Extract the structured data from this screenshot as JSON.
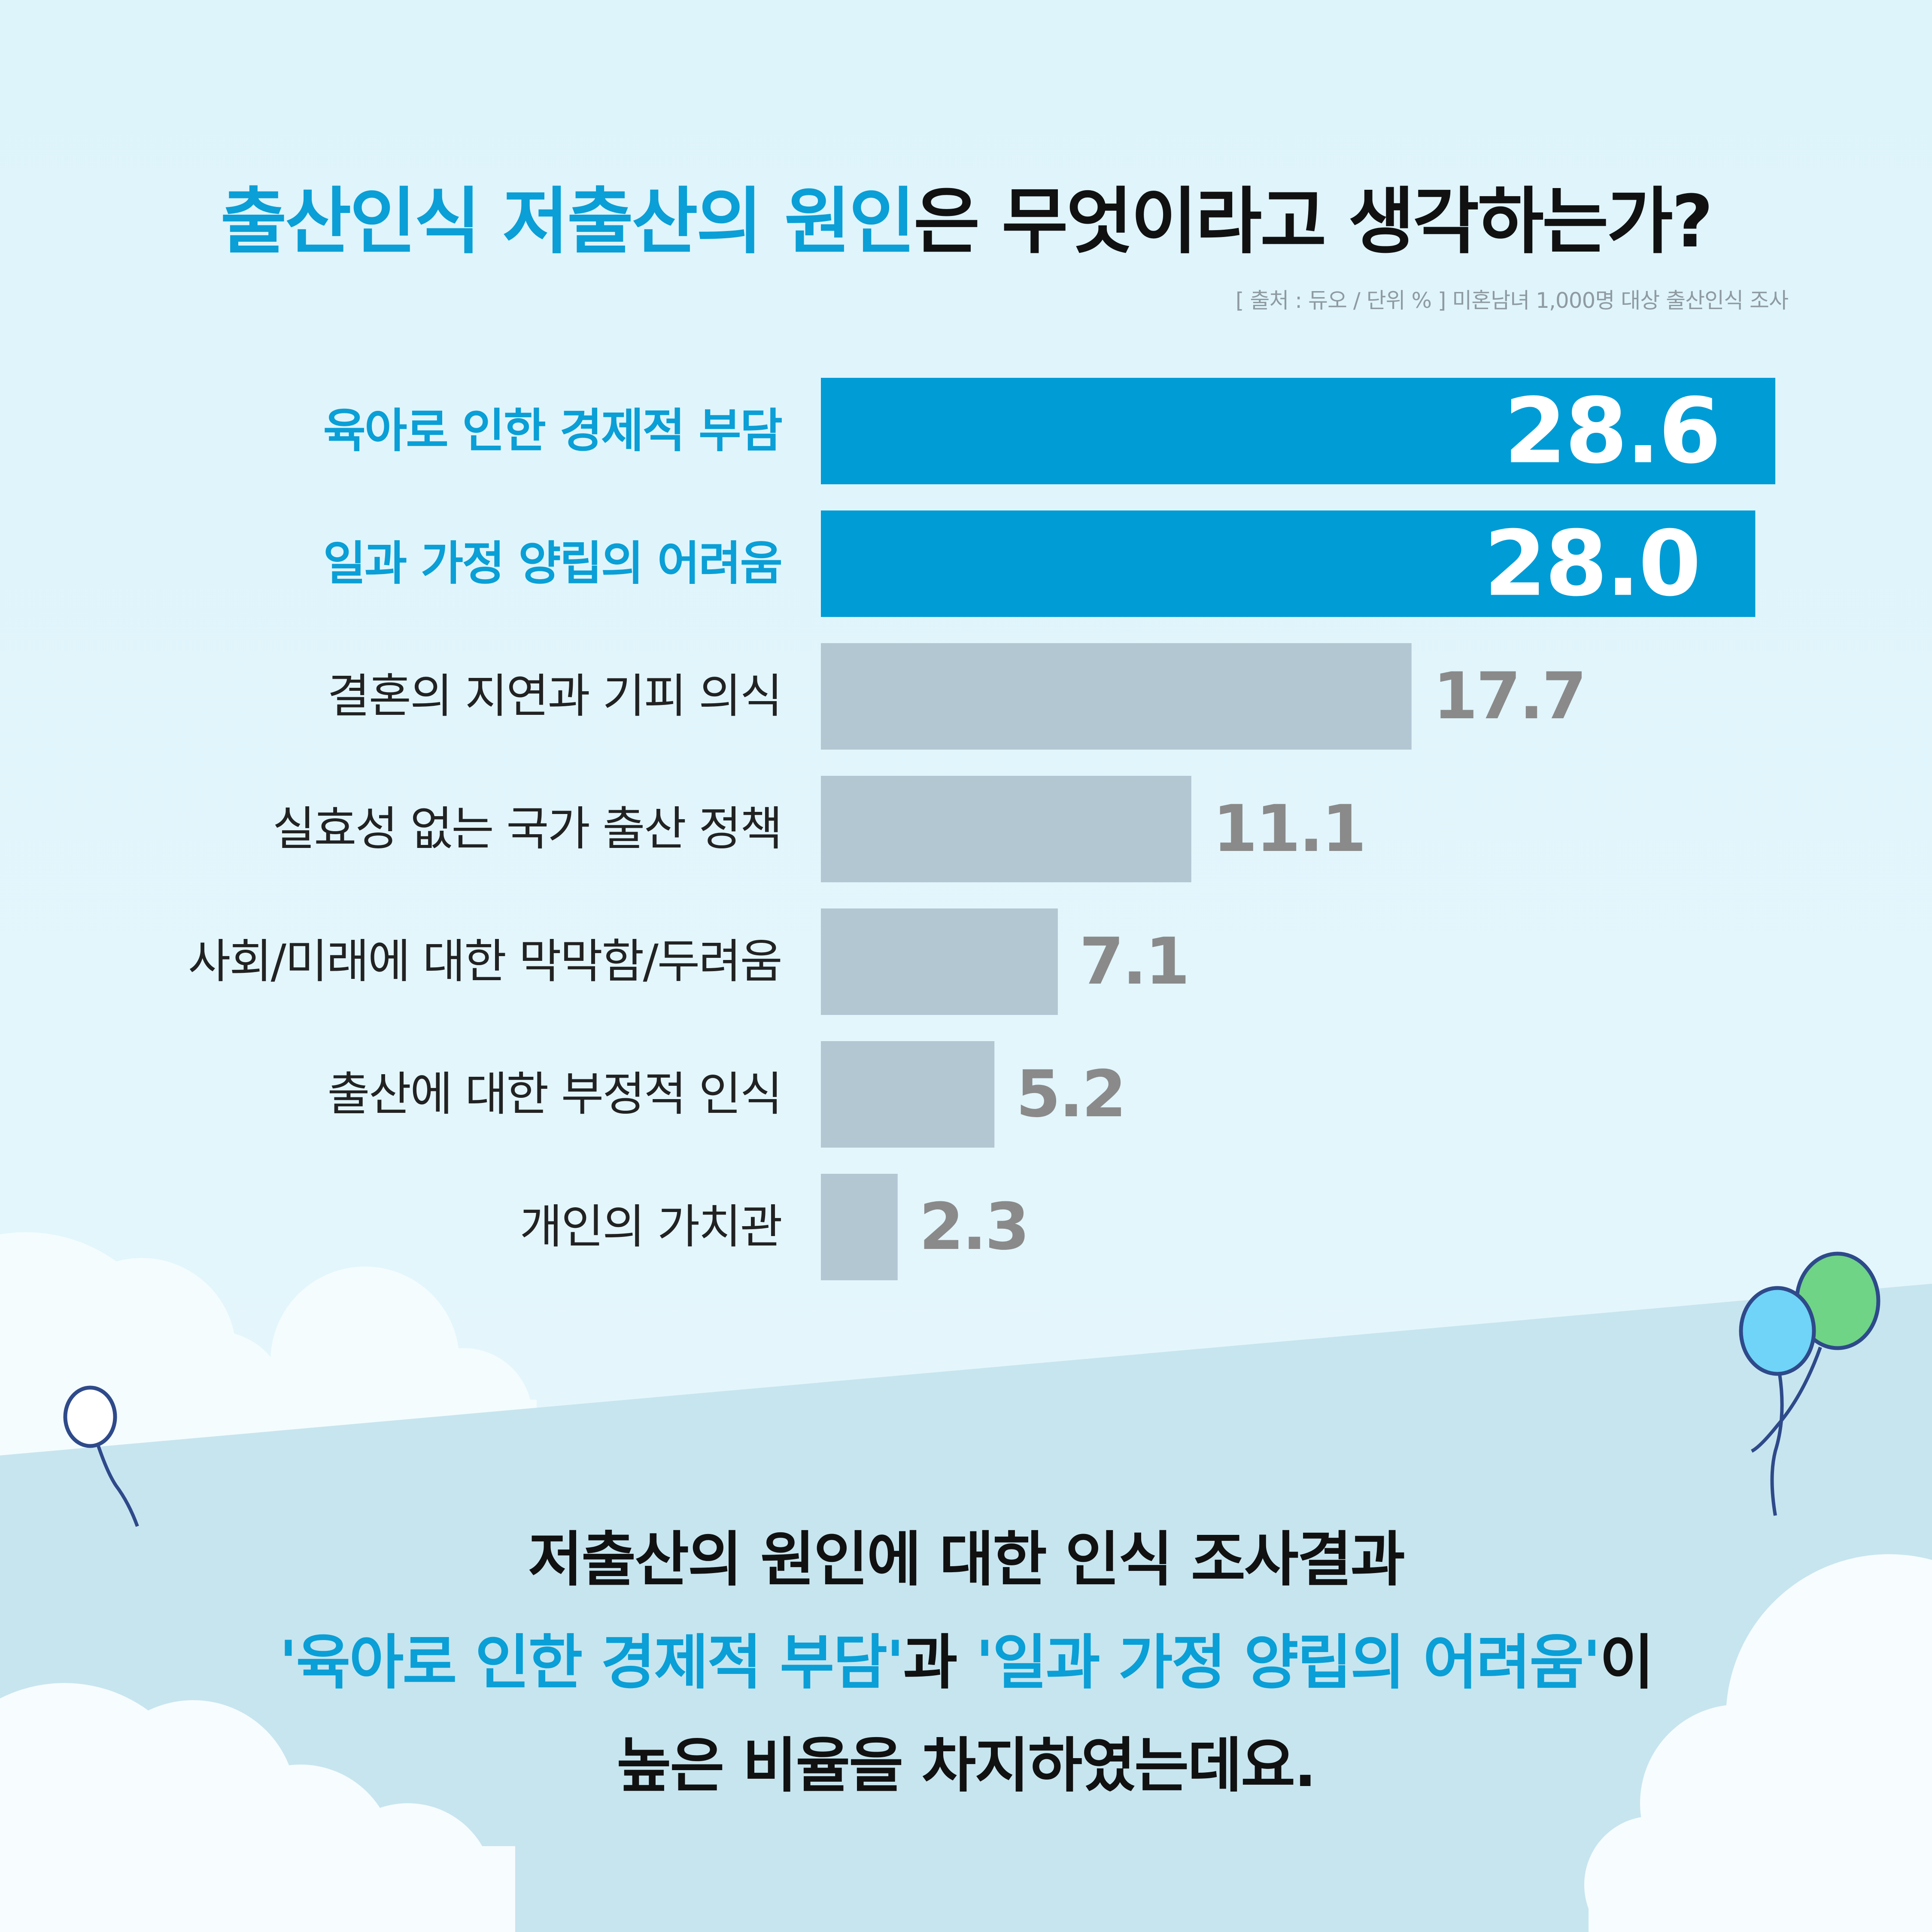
{
  "header": {
    "title_highlight": "출산인식 저출산의 원인",
    "title_rest": "은 무엇이라고 생각하는가?",
    "source": "[ 출처 : 듀오 / 단위 % ]  미혼남녀 1,000명 대상 출산인식 조사"
  },
  "chart_data": {
    "type": "bar",
    "orientation": "horizontal",
    "title": "출산인식 저출산의 원인은 무엇이라고 생각하는가?",
    "unit": "%",
    "categories": [
      "육아로 인한 경제적 부담",
      "일과 가정 양립의 어려움",
      "결혼의 지연과 기피 의식",
      "실효성 없는 국가 출산 정책",
      "사회/미래에 대한 막막함/두려움",
      "출산에 대한 부정적 인식",
      "개인의 가치관"
    ],
    "values": [
      28.6,
      28.0,
      17.7,
      11.1,
      7.1,
      5.2,
      2.3
    ],
    "value_labels": [
      "28.6",
      "28.0",
      "17.7",
      "11.1",
      "7.1",
      "5.2",
      "2.3"
    ],
    "highlighted": [
      true,
      true,
      false,
      false,
      false,
      false,
      false
    ],
    "xlim": [
      0,
      28.6
    ],
    "grid": false,
    "colors": {
      "highlight_bar": "#009cd6",
      "normal_bar": "#b3c7d3",
      "highlight_label": "#0a9fd6",
      "normal_label": "#222222",
      "highlight_value": "#ffffff",
      "normal_value": "#8a8a8a"
    }
  },
  "conclusion": {
    "line1": "저출산의 원인에 대한 인식 조사결과",
    "line2_part1": "'육아로 인한 경제적 부담'",
    "line2_part2": "과 ",
    "line2_part3": "'일과 가정 양립의 어려움'",
    "line2_part4": "이",
    "line3": "높은 비율을 차지하였는데요."
  },
  "decorations": {
    "balloon_colors": [
      "#ffffff",
      "#6fd4f7",
      "#6fd486"
    ],
    "sky_color": "#e0f5fb",
    "ground_color": "#c7e5ef"
  }
}
